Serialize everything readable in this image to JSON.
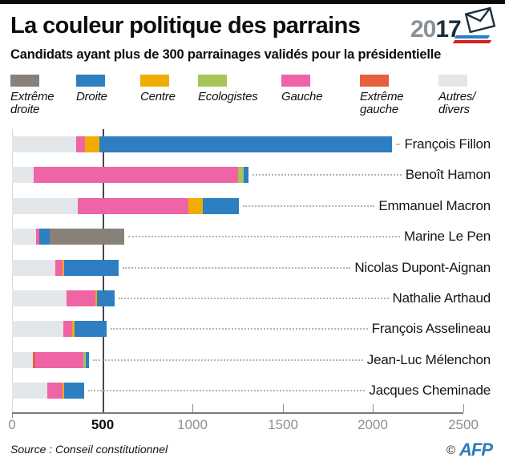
{
  "header": {
    "title": "La couleur politique des parrains",
    "subtitle": "Candidats ayant plus de 300 parrainages validés pour la présidentielle",
    "logo": {
      "prefix": "20",
      "suffix": "17",
      "icon": "envelope-icon"
    }
  },
  "legend": {
    "items": [
      {
        "key": "extreme_droite",
        "label": "Extrême\ndroite",
        "color": "#87817a"
      },
      {
        "key": "droite",
        "label": "Droite",
        "color": "#2d7fc1"
      },
      {
        "key": "centre",
        "label": "Centre",
        "color": "#f0ac00"
      },
      {
        "key": "ecologistes",
        "label": "Ecologistes",
        "color": "#a5c558"
      },
      {
        "key": "gauche",
        "label": "Gauche",
        "color": "#ee64a4"
      },
      {
        "key": "extreme_gauche",
        "label": "Extrême\ngauche",
        "color": "#e7603d"
      },
      {
        "key": "autres",
        "label": "Autres/\ndivers",
        "color": "#e4e7e9"
      }
    ]
  },
  "chart_data": {
    "type": "bar",
    "orientation": "horizontal",
    "stacked": true,
    "xlim": [
      0,
      2500
    ],
    "x_ticks": [
      0,
      500,
      1000,
      1500,
      2000,
      2500
    ],
    "threshold": 500,
    "grid": false,
    "legend_position": "top",
    "categories": [
      "François Fillon",
      "Benoît Hamon",
      "Emmanuel Macron",
      "Marine Le Pen",
      "Nicolas Dupont-Aignan",
      "Nathalie Arthaud",
      "François Asselineau",
      "Jean-Luc Mélenchon",
      "Jacques Cheminade"
    ],
    "bars": [
      {
        "name": "François Fillon",
        "total": 2105,
        "segments": [
          {
            "key": "autres",
            "value": 355
          },
          {
            "key": "gauche",
            "value": 50
          },
          {
            "key": "centre",
            "value": 80
          },
          {
            "key": "droite",
            "value": 1620
          }
        ]
      },
      {
        "name": "Benoît Hamon",
        "total": 1310,
        "segments": [
          {
            "key": "autres",
            "value": 120
          },
          {
            "key": "gauche",
            "value": 1130
          },
          {
            "key": "ecologistes",
            "value": 35
          },
          {
            "key": "droite",
            "value": 25
          }
        ]
      },
      {
        "name": "Emmanuel Macron",
        "total": 1255,
        "segments": [
          {
            "key": "autres",
            "value": 365
          },
          {
            "key": "gauche",
            "value": 610
          },
          {
            "key": "centre",
            "value": 80
          },
          {
            "key": "droite",
            "value": 200
          }
        ]
      },
      {
        "name": "Marine Le Pen",
        "total": 620,
        "segments": [
          {
            "key": "autres",
            "value": 135
          },
          {
            "key": "gauche",
            "value": 15
          },
          {
            "key": "droite",
            "value": 60
          },
          {
            "key": "extreme_droite",
            "value": 410
          }
        ]
      },
      {
        "name": "Nicolas Dupont-Aignan",
        "total": 590,
        "segments": [
          {
            "key": "autres",
            "value": 240
          },
          {
            "key": "gauche",
            "value": 40
          },
          {
            "key": "centre",
            "value": 10
          },
          {
            "key": "droite",
            "value": 300
          }
        ]
      },
      {
        "name": "Nathalie Arthaud",
        "total": 570,
        "segments": [
          {
            "key": "autres",
            "value": 300
          },
          {
            "key": "gauche",
            "value": 160
          },
          {
            "key": "centre",
            "value": 10
          },
          {
            "key": "droite",
            "value": 100
          }
        ]
      },
      {
        "name": "François Asselineau",
        "total": 525,
        "segments": [
          {
            "key": "autres",
            "value": 285
          },
          {
            "key": "gauche",
            "value": 50
          },
          {
            "key": "centre",
            "value": 10
          },
          {
            "key": "droite",
            "value": 180
          }
        ]
      },
      {
        "name": "Jean-Luc Mélenchon",
        "total": 425,
        "segments": [
          {
            "key": "autres",
            "value": 115
          },
          {
            "key": "extreme_gauche",
            "value": 12
          },
          {
            "key": "gauche",
            "value": 270
          },
          {
            "key": "ecologistes",
            "value": 13
          },
          {
            "key": "droite",
            "value": 15
          }
        ]
      },
      {
        "name": "Jacques Cheminade",
        "total": 400,
        "segments": [
          {
            "key": "autres",
            "value": 195
          },
          {
            "key": "gauche",
            "value": 85
          },
          {
            "key": "centre",
            "value": 10
          },
          {
            "key": "droite",
            "value": 110
          }
        ]
      }
    ]
  },
  "footer": {
    "source": "Source : Conseil constitutionnel",
    "credit_symbol": "©",
    "credit_text": "AFP"
  }
}
